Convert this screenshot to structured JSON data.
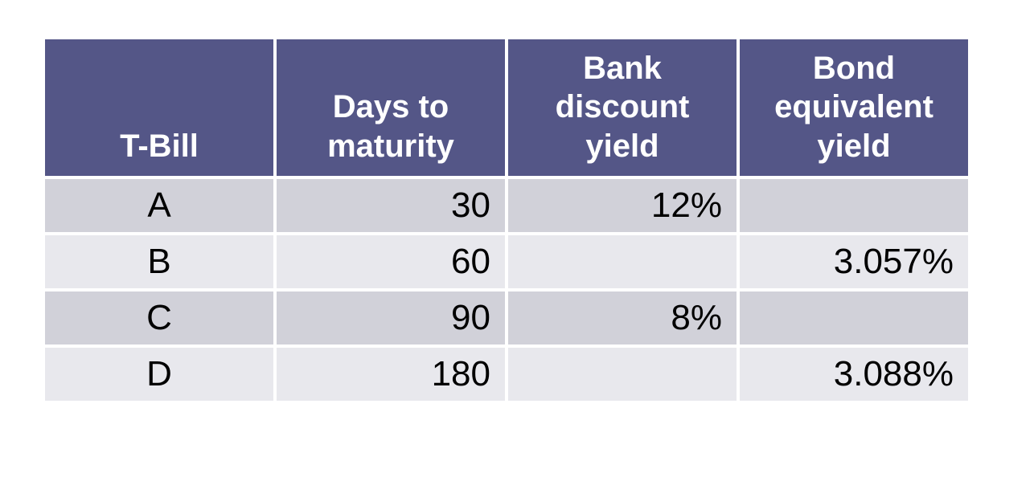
{
  "table": {
    "headers": [
      "T-Bill",
      "Days to\nmaturity",
      "Bank\ndiscount\nyield",
      "Bond\nequivalent\nyield"
    ],
    "rows": [
      [
        "A",
        "30",
        "12%",
        ""
      ],
      [
        "B",
        "60",
        "",
        "3.057%"
      ],
      [
        "C",
        "90",
        "8%",
        ""
      ],
      [
        "D",
        "180",
        "",
        "3.088%"
      ]
    ]
  },
  "colors": {
    "header_bg": "#545687",
    "header_text": "#FFFFFF",
    "band_dark": "#D1D1D9",
    "band_light": "#E8E8ED",
    "body_text": "#000000",
    "grid_gap": "#FFFFFF"
  },
  "chart_data": {
    "type": "table",
    "columns": [
      "T-Bill",
      "Days to maturity",
      "Bank discount yield",
      "Bond equivalent yield"
    ],
    "rows": [
      {
        "t_bill": "A",
        "days_to_maturity": 30,
        "bank_discount_yield": "12%",
        "bond_equivalent_yield": ""
      },
      {
        "t_bill": "B",
        "days_to_maturity": 60,
        "bank_discount_yield": "",
        "bond_equivalent_yield": "3.057%"
      },
      {
        "t_bill": "C",
        "days_to_maturity": 90,
        "bank_discount_yield": "8%",
        "bond_equivalent_yield": ""
      },
      {
        "t_bill": "D",
        "days_to_maturity": 180,
        "bank_discount_yield": "",
        "bond_equivalent_yield": "3.088%"
      }
    ]
  }
}
